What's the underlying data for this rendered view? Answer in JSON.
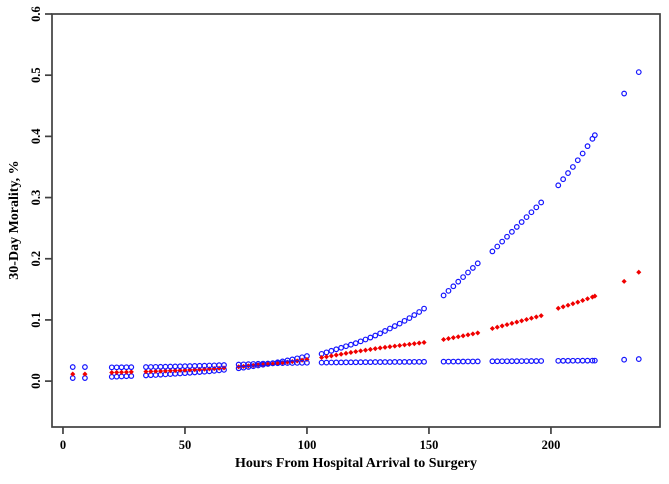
{
  "chart_data": {
    "type": "scatter",
    "title": "",
    "xlabel": "Hours From Hospital Arrival to Surgery",
    "ylabel": "30-Day Morality, %",
    "xlim": [
      -4.5,
      244.7
    ],
    "ylim": [
      -0.075,
      0.6
    ],
    "xticks": [
      0,
      50,
      100,
      150,
      200
    ],
    "yticks": [
      "0.0",
      "0.1",
      "0.2",
      "0.3",
      "0.4",
      "0.5",
      "0.6"
    ],
    "grid": false,
    "legend": "none",
    "frame_color": "#404040",
    "x_hours": [
      4,
      9,
      20,
      22,
      24,
      26,
      28,
      34,
      36,
      38,
      40,
      42,
      44,
      46,
      48,
      50,
      52,
      54,
      56,
      58,
      60,
      62,
      64,
      66,
      72,
      74,
      76,
      78,
      80,
      82,
      84,
      86,
      88,
      90,
      92,
      94,
      96,
      98,
      100,
      106,
      108,
      110,
      112,
      114,
      116,
      118,
      120,
      122,
      124,
      126,
      128,
      130,
      132,
      134,
      136,
      138,
      140,
      142,
      144,
      146,
      148,
      156,
      158,
      160,
      162,
      164,
      166,
      168,
      170,
      176,
      178,
      180,
      182,
      184,
      186,
      188,
      190,
      192,
      194,
      196,
      203,
      205,
      207,
      209,
      211,
      213,
      215,
      217,
      218,
      230,
      236
    ],
    "series": [
      {
        "name": "blue-rising-curve",
        "marker": "circle-open",
        "color": "#1414ff",
        "y": [
          0.005,
          0.005,
          0.007,
          0.0073,
          0.0076,
          0.008,
          0.0083,
          0.0093,
          0.0097,
          0.01,
          0.0105,
          0.011,
          0.0115,
          0.012,
          0.0125,
          0.013,
          0.0136,
          0.0142,
          0.0148,
          0.0154,
          0.016,
          0.0168,
          0.0176,
          0.0184,
          0.021,
          0.022,
          0.0232,
          0.0244,
          0.0256,
          0.0268,
          0.028,
          0.0293,
          0.0307,
          0.0322,
          0.0338,
          0.0354,
          0.0372,
          0.039,
          0.041,
          0.0445,
          0.047,
          0.0495,
          0.052,
          0.0545,
          0.057,
          0.0595,
          0.062,
          0.065,
          0.068,
          0.0712,
          0.0745,
          0.078,
          0.082,
          0.086,
          0.09,
          0.094,
          0.0985,
          0.103,
          0.108,
          0.113,
          0.1185,
          0.14,
          0.1475,
          0.155,
          0.1625,
          0.17,
          0.1775,
          0.185,
          0.1925,
          0.212,
          0.22,
          0.228,
          0.236,
          0.244,
          0.252,
          0.26,
          0.268,
          0.276,
          0.284,
          0.292,
          0.32,
          0.33,
          0.34,
          0.35,
          0.361,
          0.372,
          0.384,
          0.396,
          0.402,
          0.47,
          0.505
        ]
      },
      {
        "name": "red-middle-curve",
        "marker": "diamond-filled",
        "color": "#f00000",
        "y": [
          0.0115,
          0.0115,
          0.014,
          0.0142,
          0.0145,
          0.0147,
          0.015,
          0.0155,
          0.0158,
          0.0161,
          0.0164,
          0.0167,
          0.017,
          0.0173,
          0.0176,
          0.0179,
          0.0183,
          0.0187,
          0.0191,
          0.0195,
          0.02,
          0.0205,
          0.021,
          0.0216,
          0.0234,
          0.0241,
          0.0248,
          0.0255,
          0.0262,
          0.0269,
          0.0277,
          0.0284,
          0.0292,
          0.03,
          0.031,
          0.032,
          0.033,
          0.0342,
          0.0354,
          0.0386,
          0.0398,
          0.0412,
          0.0426,
          0.044,
          0.0454,
          0.0468,
          0.0482,
          0.0494,
          0.0506,
          0.0518,
          0.053,
          0.0542,
          0.0552,
          0.0562,
          0.0572,
          0.0582,
          0.0592,
          0.0602,
          0.0612,
          0.0622,
          0.0632,
          0.068,
          0.0695,
          0.071,
          0.0725,
          0.074,
          0.0756,
          0.0772,
          0.0788,
          0.086,
          0.0881,
          0.0902,
          0.0923,
          0.0944,
          0.0965,
          0.0986,
          0.1007,
          0.1028,
          0.1049,
          0.107,
          0.119,
          0.1215,
          0.124,
          0.1265,
          0.129,
          0.1318,
          0.1346,
          0.1374,
          0.139,
          0.163,
          0.178
        ]
      },
      {
        "name": "blue-flat-curve",
        "marker": "circle-open",
        "color": "#1414ff",
        "y": [
          0.023,
          0.023,
          0.0225,
          0.0225,
          0.0226,
          0.0227,
          0.0228,
          0.023,
          0.0231,
          0.0233,
          0.0234,
          0.0236,
          0.0238,
          0.024,
          0.0242,
          0.0244,
          0.0246,
          0.0248,
          0.025,
          0.0252,
          0.0255,
          0.0257,
          0.026,
          0.0263,
          0.0271,
          0.0274,
          0.0277,
          0.028,
          0.0283,
          0.0286,
          0.0288,
          0.029,
          0.0292,
          0.0294,
          0.0296,
          0.0297,
          0.0298,
          0.0299,
          0.03,
          0.0302,
          0.0303,
          0.0304,
          0.0305,
          0.0306,
          0.0307,
          0.0308,
          0.0308,
          0.0309,
          0.031,
          0.031,
          0.0311,
          0.0311,
          0.0312,
          0.0312,
          0.0313,
          0.0313,
          0.0314,
          0.0314,
          0.0315,
          0.0315,
          0.0316,
          0.0318,
          0.0319,
          0.0319,
          0.032,
          0.032,
          0.0321,
          0.0321,
          0.0322,
          0.0324,
          0.0324,
          0.0325,
          0.0325,
          0.0326,
          0.0326,
          0.0327,
          0.0327,
          0.0328,
          0.0328,
          0.0329,
          0.0331,
          0.0332,
          0.0332,
          0.0333,
          0.0333,
          0.0334,
          0.0334,
          0.0335,
          0.0335,
          0.035,
          0.036
        ]
      }
    ]
  }
}
